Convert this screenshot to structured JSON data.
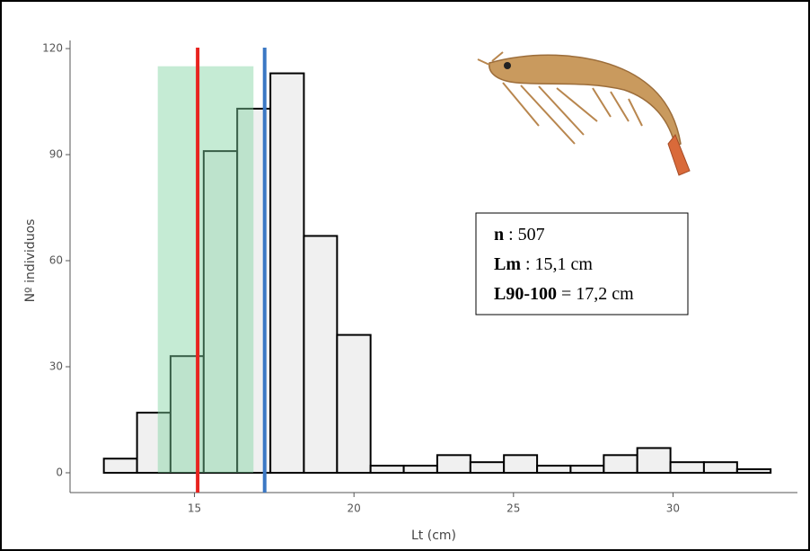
{
  "chart_data": {
    "type": "histogram",
    "x_label": "Lt (cm)",
    "y_label": "Nº individuos",
    "bins": [
      12.16,
      13.2,
      14.25,
      15.29,
      16.34,
      17.38,
      18.43,
      19.47,
      20.52,
      21.56,
      22.61,
      23.65,
      24.7,
      25.74,
      26.79,
      27.83,
      28.88,
      29.92,
      30.97,
      32.01,
      33.06
    ],
    "counts": [
      4,
      17,
      33,
      91,
      103,
      113,
      67,
      39,
      2,
      2,
      5,
      3,
      5,
      2,
      2,
      5,
      7,
      3,
      3,
      1
    ],
    "color": "#f0f0f0",
    "edge_color": "#000000",
    "xlim": [
      11.1,
      33.9
    ],
    "ylim": [
      -5.6,
      122.3
    ],
    "xticks": [
      15,
      20,
      25,
      30
    ],
    "yticks": [
      0,
      30,
      60,
      90,
      120
    ],
    "span": {
      "x0": 13.85,
      "x1": 16.85,
      "top": 115,
      "color": "#7fd3a0"
    },
    "vlines": [
      {
        "value": 15.1,
        "color": "#e8231f"
      },
      {
        "value": 17.2,
        "color": "#3b78c4"
      }
    ],
    "annotation": [
      {
        "bold": "n",
        "text": " : 507"
      },
      {
        "bold": "Lm",
        "text": " : 15,1 cm"
      },
      {
        "bold": "L90-100",
        "text": " = 17,2 cm"
      }
    ]
  }
}
